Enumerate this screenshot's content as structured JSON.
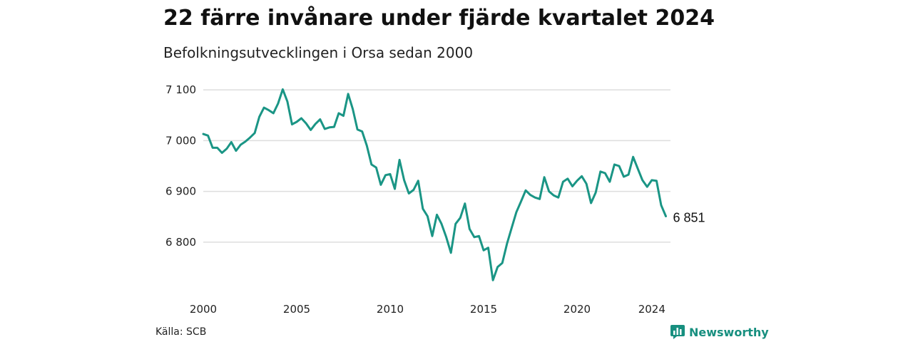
{
  "header": {
    "title": "22 färre invånare under fjärde kvartalet 2024",
    "subtitle": "Befolkningsutvecklingen i Orsa sedan 2000"
  },
  "footer": {
    "source": "Källa: SCB",
    "brand": "Newsworthy",
    "brand_icon": "bar-chart-logo-icon"
  },
  "colors": {
    "line": "#1a9585",
    "grid": "#dddddd",
    "brand": "#178f7f"
  },
  "chart_data": {
    "type": "line",
    "title": "22 färre invånare under fjärde kvartalet 2024",
    "subtitle": "Befolkningsutvecklingen i Orsa sedan 2000",
    "xlabel": "",
    "ylabel": "",
    "xlim": [
      2000,
      2025
    ],
    "ylim": [
      6710,
      7110
    ],
    "x_ticks": [
      2000,
      2005,
      2010,
      2015,
      2020,
      2024
    ],
    "x_tick_labels": [
      "2000",
      "2005",
      "2010",
      "2015",
      "2020",
      "2024"
    ],
    "y_ticks": [
      6800,
      6900,
      7000,
      7100
    ],
    "y_tick_labels": [
      "6 800",
      "6 900",
      "7 000",
      "7 100"
    ],
    "grid": true,
    "legend": "none",
    "end_label": "6 851",
    "series": [
      {
        "x": [
          2000.0,
          2000.25,
          2000.5,
          2000.75,
          2001.0,
          2001.25,
          2001.5,
          2001.75,
          2002.0,
          2002.25,
          2002.5,
          2002.75,
          2003.0,
          2003.25,
          2003.5,
          2003.75,
          2004.0,
          2004.25,
          2004.5,
          2004.75,
          2005.0,
          2005.25,
          2005.5,
          2005.75,
          2006.0,
          2006.25,
          2006.5,
          2006.75,
          2007.0,
          2007.25,
          2007.5,
          2007.75,
          2008.0,
          2008.25,
          2008.5,
          2008.75,
          2009.0,
          2009.25,
          2009.5,
          2009.75,
          2010.0,
          2010.25,
          2010.5,
          2010.75,
          2011.0,
          2011.25,
          2011.5,
          2011.75,
          2012.0,
          2012.25,
          2012.5,
          2012.75,
          2013.0,
          2013.25,
          2013.5,
          2013.75,
          2014.0,
          2014.25,
          2014.5,
          2014.75,
          2015.0,
          2015.25,
          2015.5,
          2015.75,
          2016.0,
          2016.25,
          2016.5,
          2016.75,
          2017.0,
          2017.25,
          2017.5,
          2017.75,
          2018.0,
          2018.25,
          2018.5,
          2018.75,
          2019.0,
          2019.25,
          2019.5,
          2019.75,
          2020.0,
          2020.25,
          2020.5,
          2020.75,
          2021.0,
          2021.25,
          2021.5,
          2021.75,
          2022.0,
          2022.25,
          2022.5,
          2022.75,
          2023.0,
          2023.25,
          2023.5,
          2023.75,
          2024.0,
          2024.25,
          2024.5,
          2024.75
        ],
        "values": [
          7013,
          7010,
          6986,
          6986,
          6976,
          6984,
          6997,
          6980,
          6992,
          6998,
          7006,
          7015,
          7047,
          7065,
          7060,
          7054,
          7073,
          7101,
          7077,
          7032,
          7037,
          7044,
          7034,
          7021,
          7033,
          7042,
          7023,
          7026,
          7027,
          7054,
          7049,
          7092,
          7062,
          7022,
          7018,
          6990,
          6953,
          6947,
          6913,
          6932,
          6934,
          6905,
          6962,
          6922,
          6896,
          6903,
          6921,
          6866,
          6851,
          6812,
          6854,
          6836,
          6810,
          6779,
          6836,
          6848,
          6876,
          6826,
          6810,
          6812,
          6784,
          6789,
          6725,
          6751,
          6759,
          6797,
          6828,
          6859,
          6880,
          6902,
          6893,
          6888,
          6885,
          6928,
          6900,
          6892,
          6888,
          6919,
          6925,
          6910,
          6921,
          6930,
          6915,
          6877,
          6898,
          6939,
          6936,
          6919,
          6953,
          6950,
          6929,
          6933,
          6968,
          6945,
          6922,
          6909,
          6922,
          6921,
          6873,
          6851
        ]
      }
    ]
  }
}
